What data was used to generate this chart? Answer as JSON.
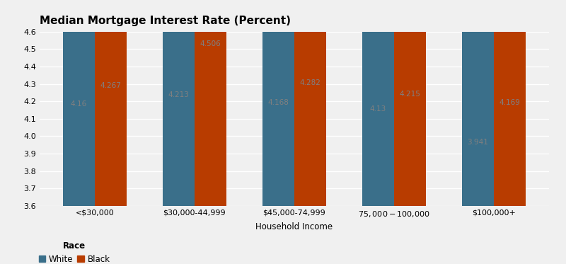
{
  "title": "Median Mortgage Interest Rate (Percent)",
  "xlabel": "Household Income",
  "ylabel": "",
  "categories": [
    "<$30,000",
    "$30,000-44,999",
    "$45,000-74,999",
    "$75,000-$100,000",
    "$100,000+"
  ],
  "white_values": [
    4.16,
    4.213,
    4.168,
    4.13,
    3.941
  ],
  "black_values": [
    4.267,
    4.506,
    4.282,
    4.215,
    4.169
  ],
  "white_color": "#3a6f8a",
  "black_color": "#b83c00",
  "ylim": [
    3.6,
    4.6
  ],
  "yticks": [
    3.6,
    3.7,
    3.8,
    3.9,
    4.0,
    4.1,
    4.2,
    4.3,
    4.4,
    4.5,
    4.6
  ],
  "bar_width": 0.32,
  "background_color": "#f0f0f0",
  "grid_color": "#ffffff",
  "title_fontsize": 11,
  "label_fontsize": 8.5,
  "tick_fontsize": 8,
  "annotation_fontsize": 7.5,
  "annotation_color": "#808080",
  "legend_label_white": "White",
  "legend_label_black": "Black",
  "legend_race_label": "Race"
}
